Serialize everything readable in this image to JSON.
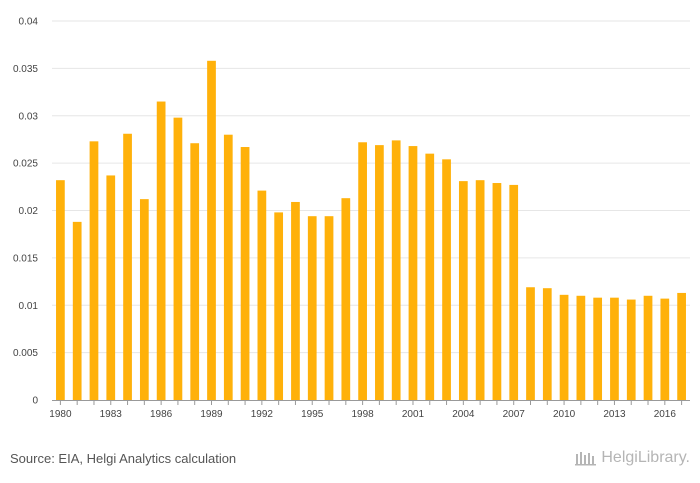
{
  "colors": {
    "bar": "#FFB10A",
    "grid": "#E6E6E6",
    "axis": "#999999"
  },
  "footer": {
    "source": "Source: EIA, Helgi Analytics calculation",
    "logo_text": "HelgiLibrary."
  },
  "chart_data": {
    "type": "bar",
    "title": "",
    "xlabel": "",
    "ylabel": "",
    "ylim": [
      0,
      0.04
    ],
    "yticks": [
      "0",
      "0.005",
      "0.01",
      "0.015",
      "0.02",
      "0.025",
      "0.03",
      "0.035",
      "0.04"
    ],
    "categories": [
      "1980",
      "1981",
      "1982",
      "1983",
      "1984",
      "1985",
      "1986",
      "1987",
      "1988",
      "1989",
      "1990",
      "1991",
      "1992",
      "1993",
      "1994",
      "1995",
      "1996",
      "1997",
      "1998",
      "1999",
      "2000",
      "2001",
      "2002",
      "2003",
      "2004",
      "2005",
      "2006",
      "2007",
      "2008",
      "2009",
      "2010",
      "2011",
      "2012",
      "2013",
      "2014",
      "2015",
      "2016",
      "2017"
    ],
    "xtick_labels": [
      "1980",
      "1983",
      "1986",
      "1989",
      "1992",
      "1995",
      "1998",
      "2001",
      "2004",
      "2007",
      "2010",
      "2013",
      "2016"
    ],
    "values": [
      0.0232,
      0.0188,
      0.0273,
      0.0237,
      0.0281,
      0.0212,
      0.0315,
      0.0298,
      0.0271,
      0.0358,
      0.028,
      0.0267,
      0.0221,
      0.0198,
      0.0209,
      0.0194,
      0.0194,
      0.0213,
      0.0272,
      0.0269,
      0.0274,
      0.0268,
      0.026,
      0.0254,
      0.0231,
      0.0232,
      0.0229,
      0.0227,
      0.0119,
      0.0118,
      0.0111,
      0.011,
      0.0108,
      0.0108,
      0.0106,
      0.011,
      0.0107,
      0.0113
    ]
  }
}
